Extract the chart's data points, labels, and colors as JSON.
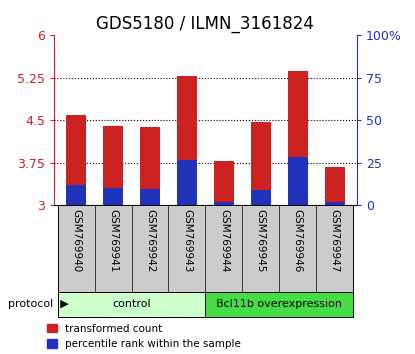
{
  "title": "GDS5180 / ILMN_3161824",
  "samples": [
    "GSM769940",
    "GSM769941",
    "GSM769942",
    "GSM769943",
    "GSM769944",
    "GSM769945",
    "GSM769946",
    "GSM769947"
  ],
  "red_tops": [
    4.6,
    4.4,
    4.38,
    5.28,
    3.78,
    4.47,
    5.37,
    3.68
  ],
  "blue_tops": [
    3.35,
    3.3,
    3.28,
    3.8,
    3.05,
    3.27,
    3.85,
    3.05
  ],
  "baseline": 3.0,
  "ylim_left": [
    3.0,
    6.0
  ],
  "ylim_right": [
    0,
    100
  ],
  "yticks_left": [
    3.0,
    3.75,
    4.5,
    5.25,
    6.0
  ],
  "yticks_right": [
    0,
    25,
    50,
    75,
    100
  ],
  "ytick_labels_right": [
    "0",
    "25",
    "50",
    "75",
    "100%"
  ],
  "ytick_labels_left": [
    "3",
    "3.75",
    "4.5",
    "5.25",
    "6"
  ],
  "bar_width": 0.55,
  "red_color": "#cc2222",
  "blue_color": "#2233bb",
  "control_color_light": "#ccffcc",
  "control_color_dark": "#44dd44",
  "protocol_label": "protocol",
  "group_labels": [
    "control",
    "Bcl11b overexpression"
  ],
  "legend_items": [
    "transformed count",
    "percentile rank within the sample"
  ],
  "bg_color": "#ffffff",
  "gray_color": "#cccccc",
  "title_fontsize": 12,
  "tick_fontsize": 9,
  "label_fontsize": 8
}
